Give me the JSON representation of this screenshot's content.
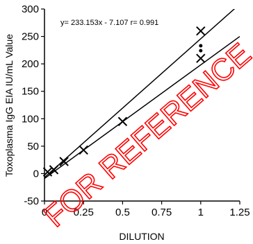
{
  "chart_data": {
    "type": "scatter",
    "xlabel": "DILUTION",
    "ylabel": "Toxoplasma IgG EIA IU/mL Value",
    "xlim": [
      0,
      1.25
    ],
    "ylim": [
      -50,
      300
    ],
    "xticks": [
      0,
      0.25,
      0.5,
      0.75,
      1,
      1.25
    ],
    "xtick_labels": [
      "0",
      "0.25",
      "0.5",
      "0.75",
      "1",
      "1.25"
    ],
    "yticks": [
      -50,
      0,
      50,
      100,
      150,
      200,
      250,
      300
    ],
    "ytick_labels": [
      "-50",
      "0",
      "50",
      "100",
      "150",
      "200",
      "250",
      "300"
    ],
    "annotation": "y= 233.153x - 7.107  r= 0.991",
    "points": [
      {
        "x": 0.02,
        "y": 3,
        "marker": "x"
      },
      {
        "x": 0.06,
        "y": 7,
        "marker": "x"
      },
      {
        "x": 0.125,
        "y": 22,
        "marker": "x"
      },
      {
        "x": 0.25,
        "y": 43,
        "marker": "x"
      },
      {
        "x": 0.5,
        "y": 95,
        "marker": "x"
      },
      {
        "x": 1.0,
        "y": 260,
        "marker": "x"
      },
      {
        "x": 1.0,
        "y": 210,
        "marker": "x"
      },
      {
        "x": 1.0,
        "y": 233,
        "marker": "dot"
      },
      {
        "x": 1.0,
        "y": 224,
        "marker": "dot"
      }
    ],
    "lines": [
      {
        "x": [
          0,
          1.25
        ],
        "y": [
          -7,
          309
        ]
      },
      {
        "x": [
          0,
          1.25
        ],
        "y": [
          -9,
          250
        ]
      }
    ],
    "grid": false,
    "colors": {
      "axis": "#000000",
      "marker": "#000000",
      "line": "#000000",
      "watermark": "#ff0000"
    }
  },
  "watermark": {
    "text": "FOR REFERENCE"
  }
}
